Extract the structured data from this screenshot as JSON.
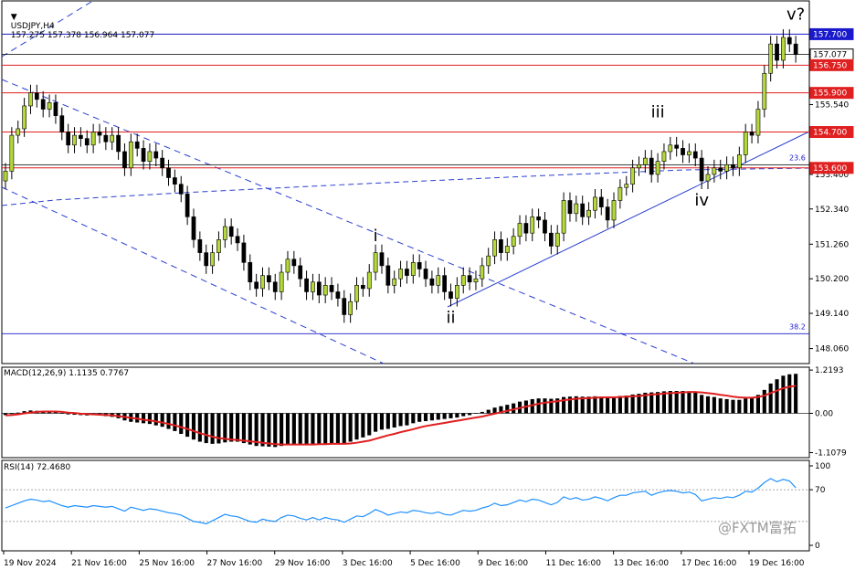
{
  "header": {
    "symbol_tf": "USDJPY,H4",
    "ohlc": "157.275 157.378 156.964 157.077"
  },
  "macd_title": "MACD(12,26,9) 1.1135 0.7767",
  "rsi_title": "RSI(14) 72.4680",
  "watermark": "@FXTM富拓",
  "chart_data": {
    "type": "candlestick",
    "price_axis": {
      "ticks": [
        "155.540",
        "154.700",
        "153.400",
        "152.340",
        "151.260",
        "150.200",
        "149.140",
        "148.060"
      ],
      "range": [
        147.6,
        158.3
      ]
    },
    "x_labels": [
      "19 Nov 2024",
      "21 Nov 16:00",
      "25 Nov 16:00",
      "27 Nov 16:00",
      "29 Nov 16:00",
      "3 Dec 16:00",
      "5 Dec 16:00",
      "9 Dec 16:00",
      "11 Dec 16:00",
      "13 Dec 16:00",
      "17 Dec 16:00",
      "19 Dec 16:00"
    ],
    "levels": [
      {
        "price": 157.7,
        "label": "157.700",
        "color": "#1a1acc",
        "style": "blue-box"
      },
      {
        "price": 157.077,
        "label": "157.077",
        "color": "#000000",
        "style": "current"
      },
      {
        "price": 156.75,
        "label": "156.750",
        "color": "#e02020",
        "style": "red-box"
      },
      {
        "price": 155.9,
        "label": "155.900",
        "color": "#e02020",
        "style": "red-box"
      },
      {
        "price": 154.7,
        "label": "154.700",
        "color": "#e02020",
        "style": "red-box"
      },
      {
        "price": 153.6,
        "label": "153.600",
        "color": "#e02020",
        "style": "red-box"
      }
    ],
    "fib_labels": [
      {
        "price": 153.78,
        "label": "23.6"
      },
      {
        "price": 148.6,
        "label": "38.2"
      }
    ],
    "wave_labels": [
      {
        "text": "i",
        "index": 59,
        "price": 151.35
      },
      {
        "text": "ii",
        "index": 71,
        "price": 148.85
      },
      {
        "text": "iii",
        "index": 104,
        "price": 155.15
      },
      {
        "text": "iv",
        "index": 111,
        "price": 152.45
      },
      {
        "text": "v?",
        "index": 126,
        "price": 158.15
      }
    ],
    "closes": [
      153.5,
      154.6,
      154.8,
      155.5,
      155.9,
      155.7,
      155.4,
      155.6,
      155.2,
      154.7,
      154.3,
      154.6,
      154.5,
      154.3,
      154.7,
      154.6,
      154.4,
      154.6,
      154.1,
      153.6,
      154.4,
      154.2,
      153.8,
      154.1,
      153.9,
      153.6,
      153.3,
      153.1,
      152.8,
      152.1,
      151.4,
      151.0,
      150.6,
      151.0,
      151.4,
      151.8,
      151.5,
      151.3,
      150.7,
      150.1,
      149.9,
      150.3,
      150.1,
      149.8,
      150.4,
      150.8,
      150.6,
      150.2,
      149.8,
      150.1,
      149.7,
      150.0,
      149.8,
      149.6,
      149.1,
      149.5,
      150.0,
      149.9,
      150.4,
      151.0,
      150.6,
      150.0,
      150.2,
      150.5,
      150.3,
      150.7,
      150.5,
      150.2,
      150.0,
      150.3,
      149.8,
      149.6,
      150.0,
      150.3,
      150.1,
      150.2,
      150.6,
      150.9,
      151.4,
      151.0,
      151.2,
      151.5,
      151.9,
      151.6,
      152.1,
      152.0,
      151.6,
      151.2,
      151.6,
      152.6,
      152.2,
      152.5,
      152.1,
      152.3,
      152.7,
      152.4,
      152.0,
      152.6,
      153.0,
      153.1,
      153.6,
      153.7,
      153.9,
      153.4,
      153.8,
      154.1,
      154.3,
      154.2,
      154.0,
      154.1,
      153.9,
      153.2,
      153.4,
      153.6,
      153.5,
      153.7,
      153.6,
      154.0,
      154.7,
      154.6,
      155.4,
      156.5,
      157.4,
      156.9,
      157.6,
      157.4,
      157.077
    ],
    "macd": [
      -0.05,
      -0.02,
      0.02,
      0.06,
      0.08,
      0.07,
      0.05,
      0.06,
      0.04,
      0.0,
      -0.03,
      -0.04,
      -0.05,
      -0.06,
      -0.05,
      -0.06,
      -0.08,
      -0.1,
      -0.14,
      -0.2,
      -0.24,
      -0.26,
      -0.28,
      -0.3,
      -0.34,
      -0.38,
      -0.44,
      -0.5,
      -0.58,
      -0.66,
      -0.74,
      -0.8,
      -0.84,
      -0.86,
      -0.85,
      -0.82,
      -0.8,
      -0.8,
      -0.84,
      -0.88,
      -0.92,
      -0.93,
      -0.94,
      -0.95,
      -0.92,
      -0.88,
      -0.86,
      -0.86,
      -0.87,
      -0.86,
      -0.86,
      -0.85,
      -0.84,
      -0.84,
      -0.84,
      -0.8,
      -0.74,
      -0.68,
      -0.62,
      -0.52,
      -0.46,
      -0.44,
      -0.4,
      -0.36,
      -0.34,
      -0.28,
      -0.24,
      -0.22,
      -0.2,
      -0.18,
      -0.16,
      -0.14,
      -0.12,
      -0.08,
      -0.05,
      -0.01,
      0.04,
      0.1,
      0.16,
      0.2,
      0.24,
      0.28,
      0.33,
      0.36,
      0.4,
      0.42,
      0.42,
      0.41,
      0.42,
      0.46,
      0.47,
      0.48,
      0.47,
      0.47,
      0.48,
      0.47,
      0.46,
      0.47,
      0.49,
      0.5,
      0.53,
      0.55,
      0.58,
      0.59,
      0.6,
      0.62,
      0.63,
      0.63,
      0.63,
      0.62,
      0.6,
      0.52,
      0.48,
      0.46,
      0.42,
      0.4,
      0.38,
      0.38,
      0.42,
      0.45,
      0.52,
      0.66,
      0.84,
      0.96,
      1.06,
      1.1,
      1.1135
    ],
    "signal": [
      -0.06,
      -0.05,
      -0.03,
      0.0,
      0.02,
      0.04,
      0.05,
      0.05,
      0.05,
      0.04,
      0.02,
      0.01,
      -0.01,
      -0.02,
      -0.03,
      -0.04,
      -0.05,
      -0.06,
      -0.08,
      -0.1,
      -0.13,
      -0.15,
      -0.18,
      -0.2,
      -0.23,
      -0.26,
      -0.3,
      -0.34,
      -0.39,
      -0.44,
      -0.5,
      -0.56,
      -0.61,
      -0.66,
      -0.7,
      -0.72,
      -0.74,
      -0.75,
      -0.77,
      -0.79,
      -0.81,
      -0.83,
      -0.85,
      -0.87,
      -0.88,
      -0.88,
      -0.88,
      -0.88,
      -0.88,
      -0.88,
      -0.87,
      -0.87,
      -0.86,
      -0.86,
      -0.86,
      -0.85,
      -0.83,
      -0.8,
      -0.77,
      -0.72,
      -0.67,
      -0.62,
      -0.58,
      -0.53,
      -0.49,
      -0.45,
      -0.4,
      -0.36,
      -0.33,
      -0.3,
      -0.27,
      -0.24,
      -0.21,
      -0.18,
      -0.15,
      -0.12,
      -0.09,
      -0.05,
      -0.01,
      0.03,
      0.07,
      0.11,
      0.15,
      0.19,
      0.23,
      0.27,
      0.3,
      0.32,
      0.34,
      0.37,
      0.39,
      0.41,
      0.42,
      0.43,
      0.44,
      0.45,
      0.45,
      0.45,
      0.46,
      0.47,
      0.48,
      0.49,
      0.51,
      0.53,
      0.54,
      0.56,
      0.57,
      0.58,
      0.59,
      0.6,
      0.6,
      0.59,
      0.57,
      0.55,
      0.52,
      0.5,
      0.47,
      0.45,
      0.44,
      0.44,
      0.46,
      0.5,
      0.57,
      0.64,
      0.71,
      0.75,
      0.7767
    ],
    "macd_axis": {
      "ticks": [
        "1.2193",
        "0.00",
        "-1.1079"
      ],
      "range": [
        -1.25,
        1.3
      ]
    },
    "rsi": [
      47,
      50,
      53,
      56,
      58,
      57,
      55,
      56,
      53,
      50,
      48,
      50,
      49,
      48,
      50,
      49,
      48,
      49,
      46,
      43,
      48,
      46,
      44,
      46,
      45,
      43,
      41,
      40,
      38,
      34,
      30,
      29,
      27,
      31,
      35,
      39,
      37,
      36,
      33,
      30,
      29,
      33,
      31,
      30,
      35,
      38,
      37,
      34,
      32,
      35,
      32,
      35,
      33,
      32,
      29,
      33,
      37,
      36,
      40,
      45,
      42,
      38,
      40,
      42,
      41,
      44,
      43,
      41,
      40,
      42,
      39,
      38,
      41,
      44,
      43,
      44,
      47,
      49,
      53,
      50,
      51,
      54,
      57,
      55,
      58,
      57,
      54,
      51,
      54,
      61,
      58,
      60,
      57,
      58,
      61,
      59,
      56,
      60,
      63,
      63,
      66,
      67,
      68,
      63,
      66,
      68,
      69,
      68,
      66,
      67,
      64,
      56,
      58,
      60,
      59,
      61,
      60,
      63,
      68,
      67,
      72,
      79,
      84,
      80,
      83,
      81,
      72.468
    ],
    "rsi_axis": {
      "ticks": [
        "100",
        "70",
        "0"
      ],
      "range": [
        0,
        100
      ]
    }
  }
}
